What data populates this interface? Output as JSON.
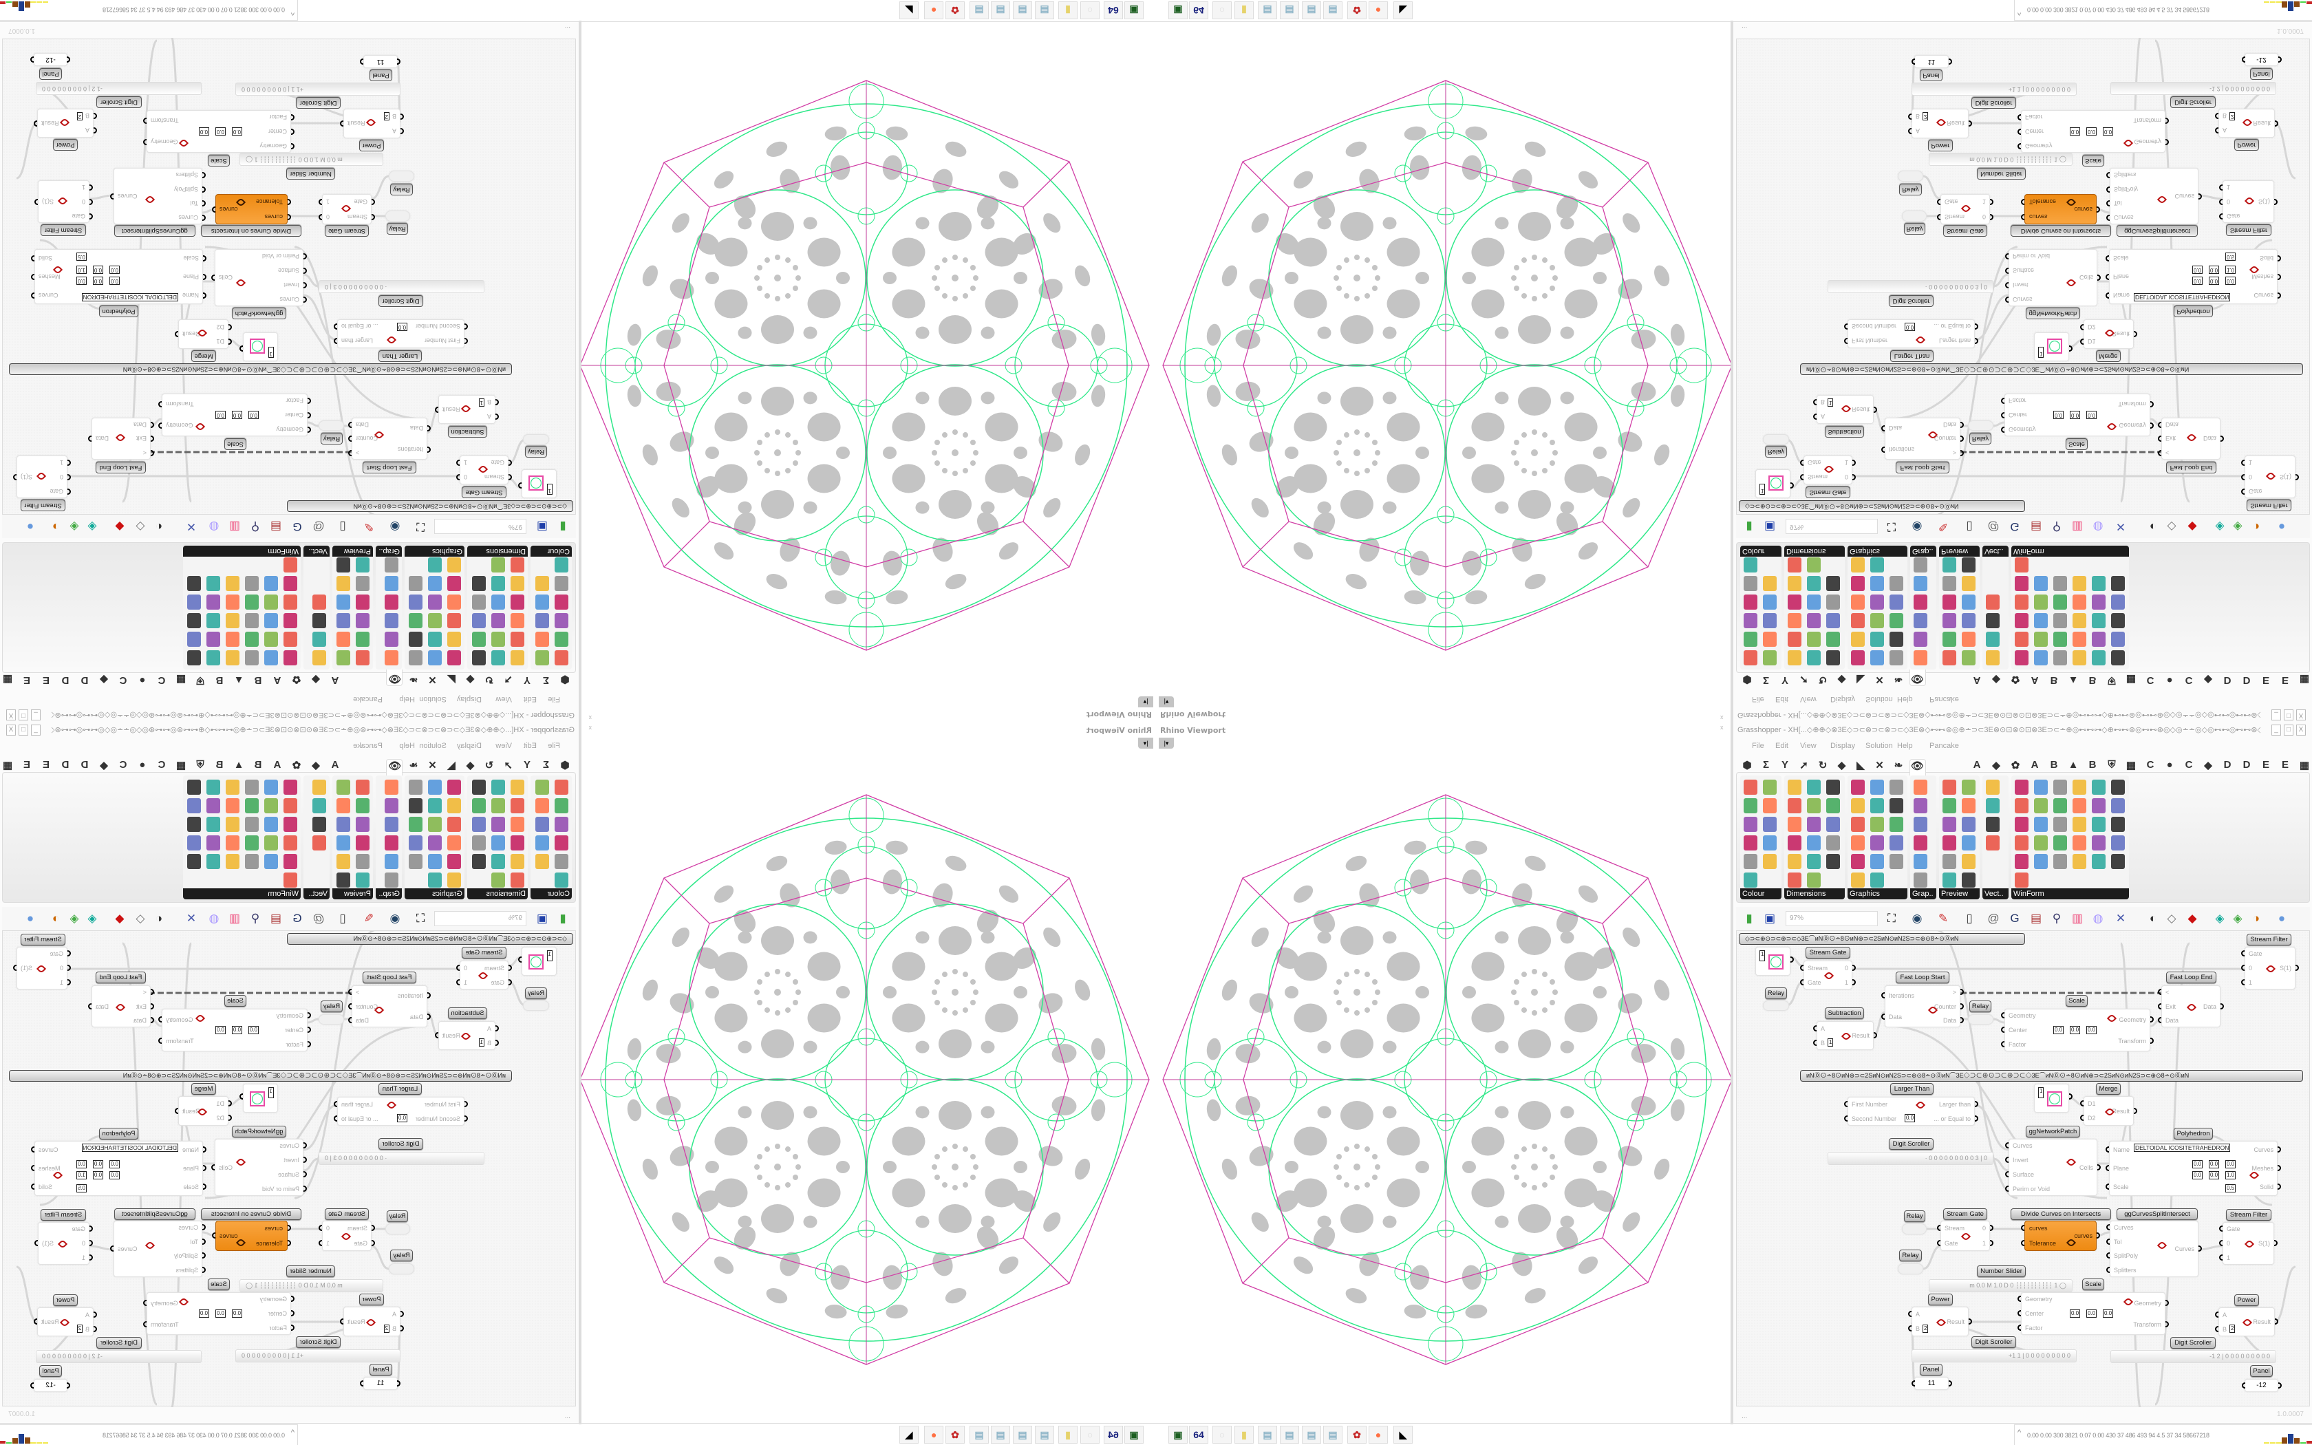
{
  "viewport": {
    "title": "Rhino Viewport",
    "dropdown_icon": "caret-down-icon",
    "colors": {
      "outline": "#d13fa6",
      "curves": "#2fe889",
      "holes": "#c4c4c4",
      "axis": "#c13a9a"
    }
  },
  "grasshopper": {
    "title": "Grasshopper - XH[...◇⊕⊕◇⊗3E◇⊃⊂⊗⊃⊂⊗⊃⊂◇3E⊗◇⊷⊷⊛◎⊕∸⊃⊂3E⊗⊙⊡⊗⊙⊡⊗3E⊃⊂∸⊕◎⊷⊷⊶◇⊕⊷⊷⊛◎⊷⊷⊛◎◇◎∸∸◎◇◎⊷⊷◎⊷⊷⊛◇⊷⊷◎⊕∸⊃⊂3E⊗⊙⊡⊗⊙⊡...",
    "window_buttons": [
      "_",
      "□",
      "X"
    ],
    "menu": [
      "File",
      "Edit",
      "View",
      "Display",
      "Solution",
      "Help",
      "Pancake"
    ],
    "tabs_icons": [
      "⬢",
      "Σ",
      "Y",
      "➚",
      "↻",
      "◆",
      "◣",
      "✕",
      "❧",
      "👁"
    ],
    "tabs_letters": [
      "A",
      "◆",
      "✿",
      "A",
      "B",
      "▲",
      "B",
      "⛨",
      "▦",
      "C",
      "●",
      "C",
      "◆",
      "D",
      "D",
      "E",
      "E",
      "▦"
    ],
    "ribbon_groups": [
      {
        "label": "Colour",
        "icon_count": 11
      },
      {
        "label": "Dimensions",
        "icon_count": 17
      },
      {
        "label": "Graphics",
        "icon_count": 17
      },
      {
        "label": "Grap..",
        "icon_count": 6
      },
      {
        "label": "Preview",
        "icon_count": 12
      },
      {
        "label": "Vect..",
        "icon_count": 4
      },
      {
        "label": "WinForm",
        "icon_count": 31
      }
    ],
    "canvas_toolbar": {
      "zoom": "97%",
      "icons": [
        "new-file-icon",
        "save-icon",
        "zoom-extents-icon",
        "preview-eye-icon",
        "sketch-pen-icon",
        "bake-icon",
        "email-icon",
        "gha-icon",
        "document-icon",
        "search-icon",
        "package-icon",
        "bulb-icon",
        "cross-icon",
        "mesh-icon",
        "surface-icon",
        "solid-icon",
        "teal-icon",
        "green-icon",
        "sphere-icon",
        "blue-sphere-icon"
      ]
    },
    "group_bars": [
      "◇⊃⊂⊕⊙⊃⊂⊕⊃⊂◇3E⌒иN⓪⊙∸8⊙иN⊕⊃⊂2SиN⊙иN2S⊃⊂⊕⊙8∸⊙⓪иN",
      "иN⓪⊙∸8⊙иN⊕⊃⊂2SиN⊙иN2S⊃⊂⊕⊙8∸⊙⓪иN⌒3E◇⊃⊂⊕⊙⊃⊂⊕⊃⊂◇3E⌒иN⓪⊙∸8⊙иN⊕⊃⊂2SиN⊙иN2S⊃⊂⊕⊙8∸⊙⓪иN"
    ],
    "nodes": [
      {
        "label": "",
        "kind": "swatch",
        "value": "1"
      },
      {
        "label": "Stream Gate",
        "inputs": [
          "Stream",
          "Gate"
        ],
        "outputs": [
          "0",
          "1"
        ]
      },
      {
        "label": "Stream Filter",
        "inputs": [
          "Gate",
          "0",
          "1"
        ],
        "outputs": [
          "S(1)"
        ]
      },
      {
        "label": "Relay",
        "kind": "relay"
      },
      {
        "label": "Fast Loop Start",
        "inputs": [
          "Iterations",
          "Data"
        ],
        "outputs": [
          ">",
          "Counter",
          "Data"
        ]
      },
      {
        "label": "Relay",
        "kind": "relay"
      },
      {
        "label": "Scale",
        "inputs": [
          "Geometry",
          "Center",
          "Factor"
        ],
        "outputs": [
          "Geometry",
          "Transform"
        ],
        "values": [
          "0.0",
          "0.0",
          "0.0"
        ]
      },
      {
        "label": "Fast Loop End",
        "inputs": [
          "<",
          "Exit",
          "Data"
        ],
        "outputs": [
          "Data"
        ]
      },
      {
        "label": "Subtraction",
        "inputs": [
          "A",
          "B"
        ],
        "outputs": [
          "Result"
        ],
        "values": [
          "1"
        ]
      },
      {
        "label": "Larger Than",
        "inputs": [
          "First Number",
          "Second Number"
        ],
        "outputs": [
          "Larger than",
          "... or Equal to"
        ],
        "values": [
          "0.0"
        ]
      },
      {
        "label": "",
        "kind": "swatch",
        "value": "1"
      },
      {
        "label": "Merge",
        "inputs": [
          "D1",
          "D2"
        ],
        "outputs": [
          "Result"
        ]
      },
      {
        "label": "ggNetworkPatch",
        "inputs": [
          "Curves",
          "Invert",
          "Surface",
          "Perim or Void"
        ],
        "outputs": [
          "Cells"
        ]
      },
      {
        "label": "Polyhedron",
        "inputs": [
          "Name",
          "Plane",
          "Scale"
        ],
        "outputs": [
          "Curves",
          "Meshes",
          "Solid"
        ],
        "values": [
          "DELTOIDAL ICOSITETRAHEDRON",
          "0.0",
          "0.0",
          "0.0",
          "0.0",
          "0.0",
          "1.0",
          "0.5"
        ]
      },
      {
        "label": "Digit Scroller",
        "kind": "scroller",
        "value": "· 0 0 0 0 0 0 0 0 0 3 | 0"
      },
      {
        "label": "Relay",
        "kind": "relay"
      },
      {
        "label": "Stream Gate",
        "inputs": [
          "Stream",
          "Gate"
        ],
        "outputs": [
          "0",
          "1"
        ]
      },
      {
        "label": "Divide Curves on Intersects",
        "kind": "orange",
        "inputs": [
          "curves",
          "Tolerance"
        ],
        "outputs": [
          "curves"
        ]
      },
      {
        "label": "ggCurvesSplitIntersect",
        "inputs": [
          "Curves",
          "Tol",
          "SplitPoly",
          "Splitters"
        ],
        "outputs": [
          "Curves"
        ]
      },
      {
        "label": "Stream Filter",
        "inputs": [
          "Gate",
          "0",
          "1"
        ],
        "outputs": [
          "S(1)"
        ]
      },
      {
        "label": "Relay",
        "kind": "relay"
      },
      {
        "label": "Number Slider",
        "kind": "slider",
        "value": "m 0.0  M 1.0  D 0   ┆┆┆┆┆┆┆┆┆┆ 1 ◯"
      },
      {
        "label": "Scale",
        "inputs": [
          "Geometry",
          "Center",
          "Factor"
        ],
        "outputs": [
          "Geometry",
          "Transform"
        ],
        "values": [
          "0.0",
          "0.0",
          "0.0"
        ]
      },
      {
        "label": "Power",
        "inputs": [
          "A",
          "B"
        ],
        "outputs": [
          "Result"
        ],
        "values": [
          "2"
        ]
      },
      {
        "label": "Power",
        "inputs": [
          "A",
          "B"
        ],
        "outputs": [
          "Result"
        ],
        "values": [
          "2"
        ]
      },
      {
        "label": "Digit Scroller",
        "kind": "scroller",
        "value": "+1 1 | 0 0 0 0 0 0 0 0 0"
      },
      {
        "label": "Digit Scroller",
        "kind": "scroller",
        "value": "-1 2 | 0 0 0 0 0 0 0 0 0"
      },
      {
        "label": "Panel",
        "kind": "panel",
        "value": "11"
      },
      {
        "label": "Panel",
        "kind": "panel",
        "value": "-12"
      }
    ],
    "status_left": "...",
    "status_right": "1.0.0007"
  },
  "taskbar": {
    "icons": [
      {
        "name": "terminal-icon",
        "glyph": "▣",
        "color": "#1b5e20"
      },
      {
        "name": "floppy-64-icon",
        "glyph": "64",
        "color": "#1a237e"
      },
      {
        "name": "blank-icon",
        "glyph": "○",
        "color": "#ddd"
      },
      {
        "name": "folder-icon",
        "glyph": "▮",
        "color": "#e6d36b"
      },
      {
        "name": "notepad-icon",
        "glyph": "▤",
        "color": "#8fb6c8"
      },
      {
        "name": "notepad-icon",
        "glyph": "▤",
        "color": "#8fb6c8"
      },
      {
        "name": "notepad-icon",
        "glyph": "▤",
        "color": "#8fb6c8"
      },
      {
        "name": "notepad-icon",
        "glyph": "▤",
        "color": "#8fb6c8"
      },
      {
        "name": "red-app-icon",
        "glyph": "✿",
        "color": "#c62828"
      },
      {
        "name": "firefox-icon",
        "glyph": "●",
        "color": "#ff7043"
      },
      {
        "name": "wolf-icon",
        "glyph": "◣",
        "color": "#000"
      }
    ],
    "tray_text": "0.00 0.00 300 3821 0.07 0.00 430  37  486  493  94  4.5  37  34  58667218",
    "tray_expand": "^",
    "meters": [
      {
        "color": "#f2e94e",
        "level": 0.05
      },
      {
        "color": "#f2e94e",
        "level": 0.05
      },
      {
        "color": "#f2e94e",
        "level": 0.05
      },
      {
        "color": "#8b4a12",
        "level": 0.65
      },
      {
        "color": "#1f3f8f",
        "level": 1.0
      },
      {
        "color": "#8b4a12",
        "level": 0.6
      },
      {
        "color": "#49d649",
        "level": 0.08
      },
      {
        "color": "#c62828",
        "level": 0.25
      }
    ]
  }
}
